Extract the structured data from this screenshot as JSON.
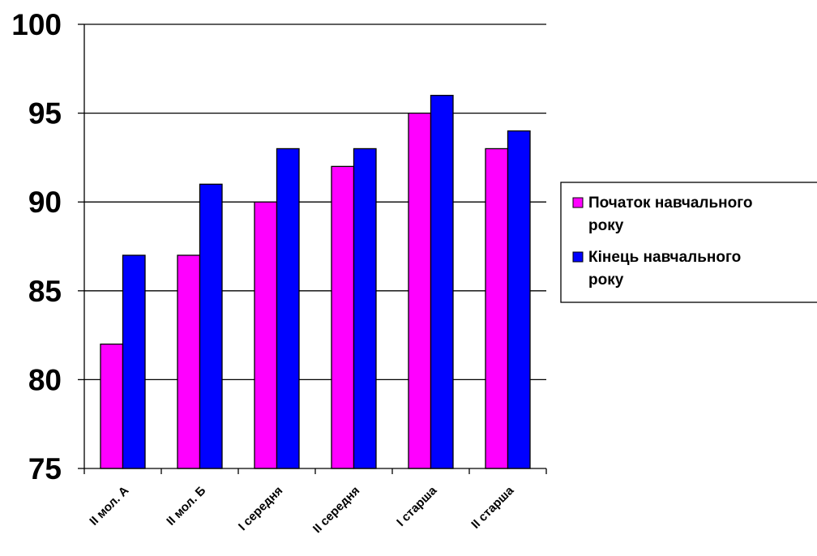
{
  "chart_data": {
    "type": "bar",
    "categories": [
      "II мол. А",
      "II мол. Б",
      "I середня",
      "II середня",
      "I старша",
      "II старша"
    ],
    "series": [
      {
        "name": "Початок навчального року",
        "color": "#ff00ff",
        "values": [
          82,
          87,
          90,
          92,
          95,
          93
        ]
      },
      {
        "name": "Кінець  навчального року",
        "color": "#0000ff",
        "values": [
          87,
          91,
          93,
          93,
          96,
          94
        ]
      }
    ],
    "ylim": [
      75,
      100
    ],
    "yticks": [
      "75",
      "80",
      "85",
      "90",
      "95",
      "100"
    ],
    "grid": true,
    "legend_position": "right",
    "legend_labels": [
      [
        "Початок навчального",
        "року"
      ],
      [
        "Кінець  навчального",
        "року"
      ]
    ]
  }
}
